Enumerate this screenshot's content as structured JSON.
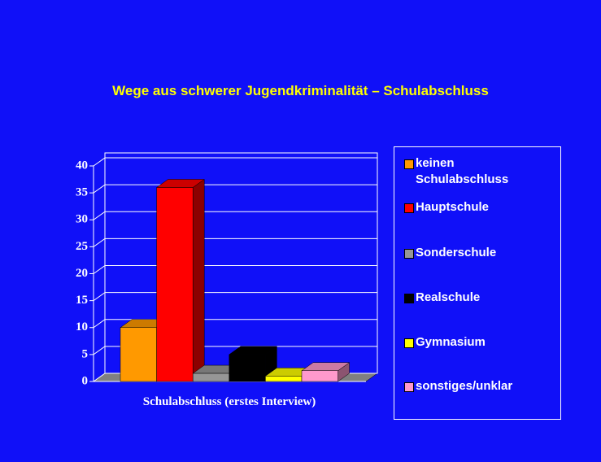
{
  "chart_data": {
    "type": "bar",
    "title": "Wege aus schwerer Jugendkriminalität – Schulabschluss",
    "x_label": "Schulabschluss (erstes Interview)",
    "categories": [
      "keinen Schulabschluss",
      "Hauptschule",
      "Sonderschule",
      "Realschule",
      "Gymnasium",
      "sonstiges/unklar"
    ],
    "values": [
      10,
      36,
      1.5,
      5,
      1,
      2
    ],
    "colors": [
      "#ff9900",
      "#ff0000",
      "#969696",
      "#000000",
      "#ffff00",
      "#ff99cc"
    ],
    "ylim": [
      0,
      40
    ],
    "yticks": [
      0,
      5,
      10,
      15,
      20,
      25,
      30,
      35,
      40
    ],
    "grid": true,
    "legend": "right"
  }
}
